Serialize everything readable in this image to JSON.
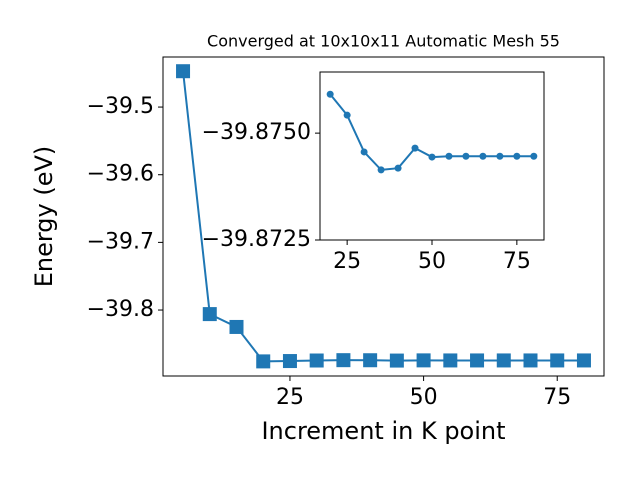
{
  "chart_data": [
    {
      "type": "line",
      "title": "Converged at 10x10x11 Automatic Mesh 55",
      "xlabel": "Increment in K point",
      "ylabel": "Energy (eV)",
      "marker": "square",
      "x": [
        5,
        10,
        15,
        20,
        25,
        30,
        35,
        40,
        45,
        50,
        55,
        60,
        65,
        70,
        75,
        80
      ],
      "series": [
        {
          "color": "#1f77b4",
          "values": [
            -39.447,
            -39.806,
            -39.825,
            -39.8759,
            -39.8754,
            -39.8746,
            -39.8741,
            -39.8742,
            -39.8747,
            -39.8744,
            -39.8745,
            -39.8745,
            -39.8745,
            -39.8745,
            -39.8745,
            -39.8745
          ]
        }
      ],
      "xlim": [
        1.25,
        83.75
      ],
      "ylim": [
        -39.8975,
        -39.426
      ],
      "xticks": [
        25,
        50,
        75
      ],
      "yticks": [
        {
          "value": -39.5,
          "label": "−39.5"
        },
        {
          "value": -39.6,
          "label": "−39.6"
        },
        {
          "value": -39.7,
          "label": "−39.7"
        },
        {
          "value": -39.8,
          "label": "−39.8"
        }
      ]
    },
    {
      "type": "line",
      "marker": "circle",
      "x": [
        20,
        25,
        30,
        35,
        40,
        45,
        50,
        55,
        60,
        65,
        70,
        75,
        80
      ],
      "series": [
        {
          "color": "#1f77b4",
          "values": [
            -39.87591,
            -39.87542,
            -39.87456,
            -39.87414,
            -39.87418,
            -39.87465,
            -39.87444,
            -39.87446,
            -39.87446,
            -39.87446,
            -39.87446,
            -39.87446,
            -39.87446
          ]
        }
      ],
      "xlim": [
        17,
        83
      ],
      "ylim": [
        -39.8725,
        -39.87643
      ],
      "xticks": [
        25,
        50,
        75
      ],
      "yticks": [
        {
          "value": -39.875,
          "label": "−39.8750"
        },
        {
          "value": -39.8725,
          "label": "−39.8725"
        }
      ]
    }
  ]
}
